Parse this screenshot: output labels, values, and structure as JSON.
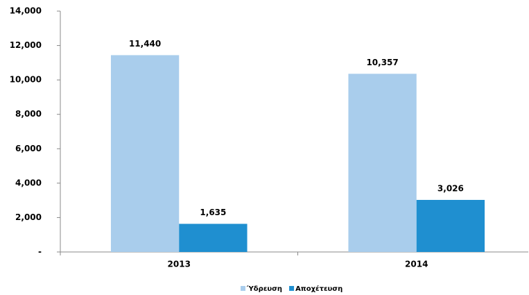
{
  "chart_data": {
    "type": "bar",
    "categories": [
      "2013",
      "2014"
    ],
    "series": [
      {
        "name": "Ύδρευση",
        "color": "#a9cdec",
        "values": [
          11440,
          10357
        ],
        "value_labels": [
          "11,440",
          "10,357"
        ]
      },
      {
        "name": "Αποχέτευση",
        "color": "#1f8fd0",
        "values": [
          1635,
          3026
        ],
        "value_labels": [
          "1,635",
          "3,026"
        ]
      }
    ],
    "ylim": [
      0,
      14000
    ],
    "yticks": [
      {
        "value": 0,
        "label": "-"
      },
      {
        "value": 2000,
        "label": "2,000"
      },
      {
        "value": 4000,
        "label": "4,000"
      },
      {
        "value": 6000,
        "label": "6,000"
      },
      {
        "value": 8000,
        "label": "8,000"
      },
      {
        "value": 10000,
        "label": "10,000"
      },
      {
        "value": 12000,
        "label": "12,000"
      },
      {
        "value": 14000,
        "label": "14,000"
      }
    ],
    "legend": "bottom"
  }
}
